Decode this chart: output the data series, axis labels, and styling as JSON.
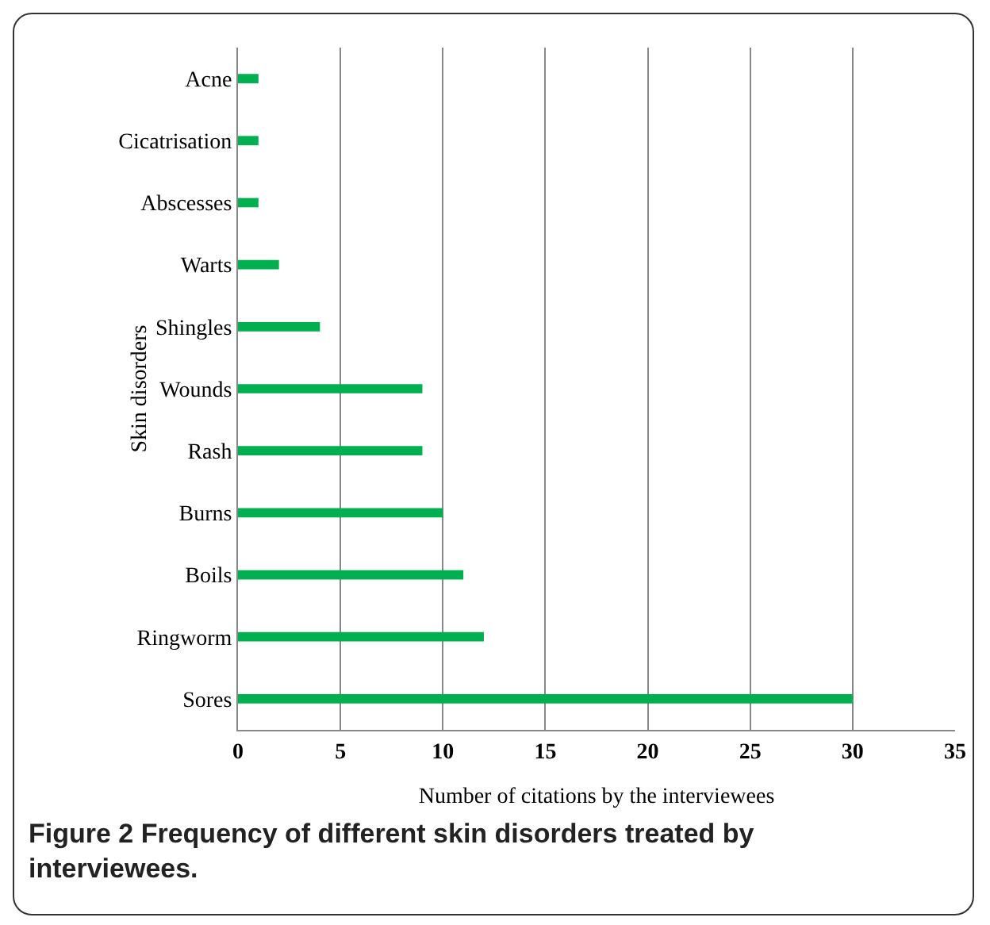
{
  "chart_data": {
    "type": "bar",
    "orientation": "horizontal",
    "categories": [
      "Acne",
      "Cicatrisation",
      "Abscesses",
      "Warts",
      "Shingles",
      "Wounds",
      "Rash",
      "Burns",
      "Boils",
      "Ringworm",
      "Sores"
    ],
    "values": [
      1,
      1,
      1,
      2,
      4,
      9,
      9,
      10,
      11,
      12,
      30
    ],
    "color": "#00b050",
    "xlim": [
      0,
      35
    ],
    "xticks": [
      0,
      5,
      10,
      15,
      20,
      25,
      30,
      35
    ],
    "xlabel": "Number of citations by the interviewees",
    "ylabel": "Skin disorders",
    "grid": "x",
    "annotations": [
      "Figure 2 Frequency of different skin disorders treated by interviewees."
    ]
  }
}
